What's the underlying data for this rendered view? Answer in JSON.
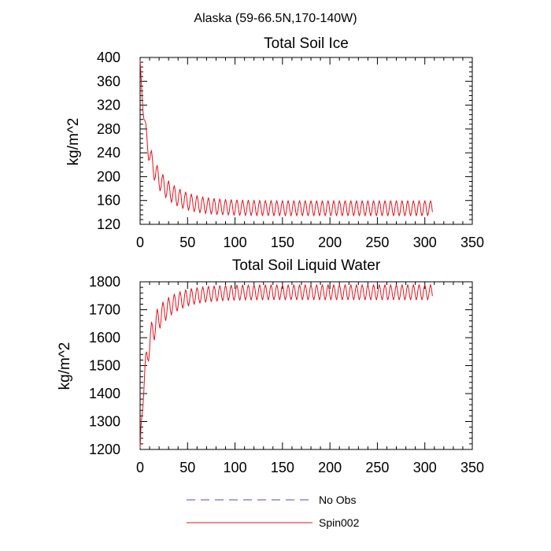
{
  "suptitle": "Alaska (59-66.5N,170-140W)",
  "colors": {
    "spin": "#e8121b",
    "noobs": "#4a4ad0"
  },
  "legend": [
    {
      "label": "No Obs",
      "style": "dashed",
      "color": "#4a4ad0"
    },
    {
      "label": "Spin002",
      "style": "solid",
      "color": "#e8121b"
    }
  ],
  "chart_data": [
    {
      "type": "line",
      "title": "Total Soil Ice",
      "ylabel": "kg/m^2",
      "xlabel": "",
      "xlim": [
        0,
        350
      ],
      "ylim": [
        120,
        400
      ],
      "xticks": [
        0,
        50,
        100,
        150,
        200,
        250,
        300,
        350
      ],
      "yticks": [
        120,
        160,
        200,
        240,
        280,
        320,
        360,
        400
      ],
      "series": [
        {
          "name": "Spin002",
          "period": 6,
          "n_points": 309,
          "start": 395,
          "peak_envelope": {
            "asymptote": 160,
            "initial": 290,
            "decay": 22
          },
          "trough_envelope": {
            "asymptote": 134,
            "initial": 250,
            "decay": 20
          }
        }
      ]
    },
    {
      "type": "line",
      "title": "Total Soil Liquid Water",
      "ylabel": "kg/m^2",
      "xlabel": "",
      "xlim": [
        0,
        350
      ],
      "ylim": [
        1200,
        1800
      ],
      "xticks": [
        0,
        50,
        100,
        150,
        200,
        250,
        300,
        350
      ],
      "yticks": [
        1200,
        1300,
        1400,
        1500,
        1600,
        1700,
        1800
      ],
      "series": [
        {
          "name": "Spin002",
          "period": 6,
          "n_points": 309,
          "start": 1205,
          "peak_envelope": {
            "asymptote": 1790,
            "initial": 1590,
            "decay": 20
          },
          "trough_envelope": {
            "asymptote": 1735,
            "initial": 1450,
            "decay": 20
          }
        }
      ]
    }
  ]
}
